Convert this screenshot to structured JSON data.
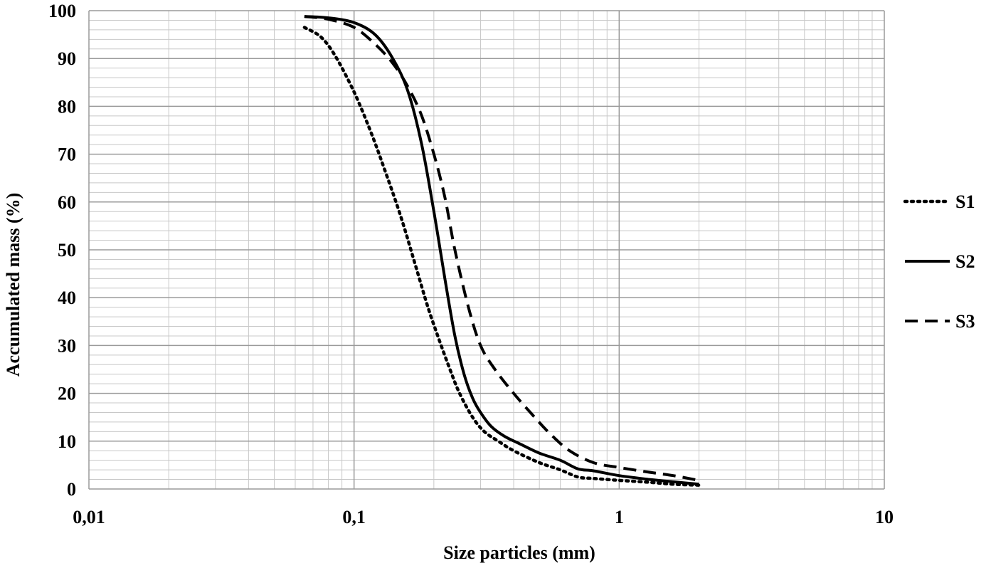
{
  "chart_data": {
    "type": "line",
    "title": "",
    "xlabel": "Size particles (mm)",
    "ylabel": "Accumulated mass (%)",
    "x_scale": "log",
    "xlim": [
      0.01,
      10
    ],
    "ylim": [
      0,
      100
    ],
    "x_ticks": [
      0.01,
      0.1,
      1,
      10
    ],
    "x_tick_labels": [
      "0,01",
      "0,1",
      "1",
      "10"
    ],
    "y_ticks": [
      0,
      10,
      20,
      30,
      40,
      50,
      60,
      70,
      80,
      90,
      100
    ],
    "y_tick_labels": [
      "0",
      "10",
      "20",
      "30",
      "40",
      "50",
      "60",
      "70",
      "80",
      "90",
      "100"
    ],
    "grid": true,
    "legend_position": "right",
    "series": [
      {
        "name": "S1",
        "style": "dotted",
        "color": "#000000",
        "x": [
          0.065,
          0.075,
          0.085,
          0.1,
          0.115,
          0.13,
          0.15,
          0.17,
          0.19,
          0.21,
          0.23,
          0.25,
          0.28,
          0.31,
          0.35,
          0.4,
          0.5,
          0.6,
          0.7,
          0.8,
          1.0,
          1.3,
          1.6,
          2.0
        ],
        "y": [
          96.5,
          94.5,
          90.5,
          83,
          75,
          67,
          57,
          47,
          38,
          31,
          25,
          20,
          15,
          12,
          10,
          8,
          5.5,
          4,
          2.5,
          2.2,
          1.8,
          1.4,
          1.0,
          0.8
        ]
      },
      {
        "name": "S2",
        "style": "solid",
        "color": "#000000",
        "x": [
          0.065,
          0.08,
          0.1,
          0.12,
          0.14,
          0.16,
          0.18,
          0.2,
          0.22,
          0.24,
          0.26,
          0.28,
          0.3,
          0.33,
          0.37,
          0.42,
          0.5,
          0.6,
          0.7,
          0.8,
          1.0,
          1.3,
          1.6,
          2.0
        ],
        "y": [
          98.8,
          98.5,
          97.5,
          95,
          90,
          83,
          72,
          58,
          44,
          32,
          24,
          19,
          16,
          13,
          11,
          9.5,
          7.5,
          6,
          4.2,
          3.8,
          2.8,
          2.0,
          1.5,
          1.0
        ]
      },
      {
        "name": "S3",
        "style": "dashed",
        "color": "#000000",
        "x": [
          0.065,
          0.08,
          0.1,
          0.12,
          0.14,
          0.16,
          0.18,
          0.2,
          0.22,
          0.24,
          0.27,
          0.3,
          0.34,
          0.4,
          0.48,
          0.55,
          0.65,
          0.8,
          1.0,
          1.3,
          1.6,
          2.0
        ],
        "y": [
          98.8,
          98.2,
          96.5,
          93,
          89,
          84,
          78,
          70,
          61,
          50,
          38,
          30,
          25,
          20,
          15,
          11.5,
          8,
          5.5,
          4.5,
          3.5,
          2.8,
          1.8
        ]
      }
    ]
  }
}
